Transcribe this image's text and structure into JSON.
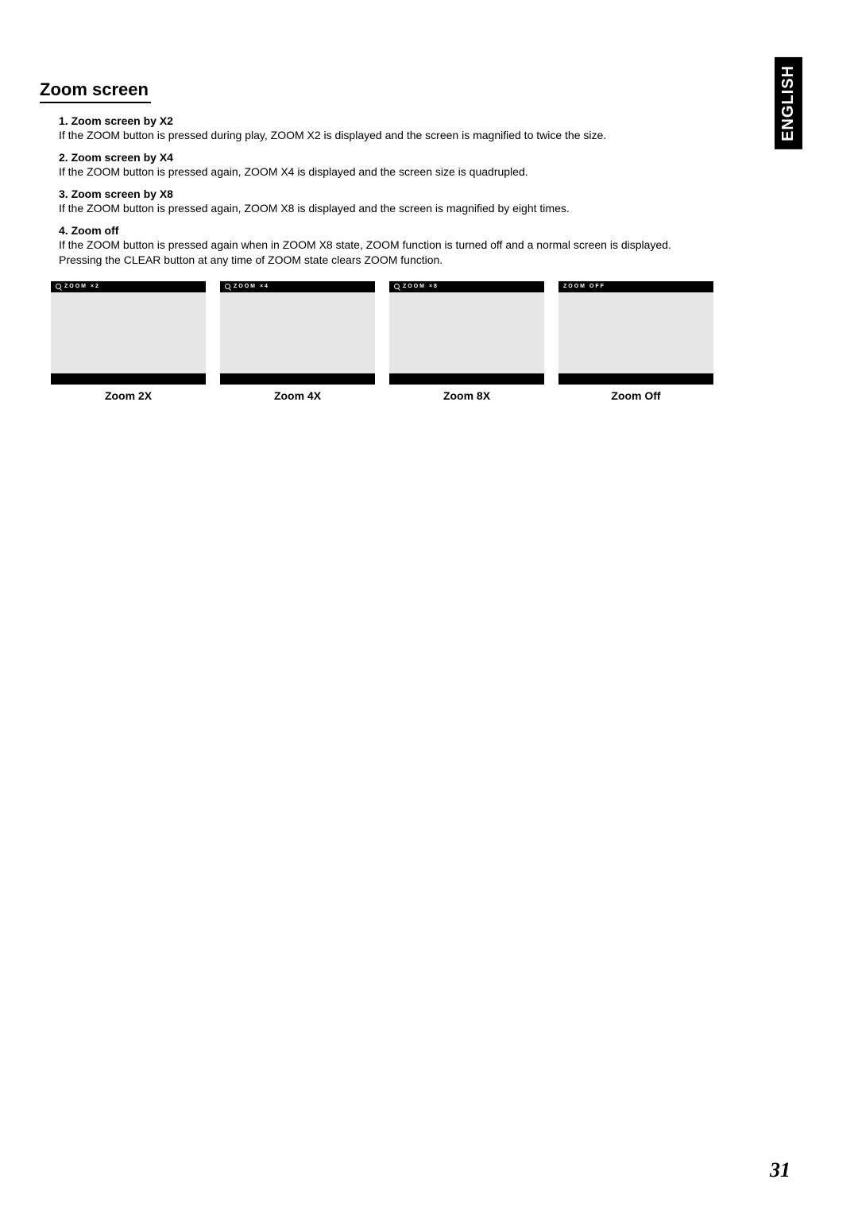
{
  "language_tab": "ENGLISH",
  "section_title": "Zoom screen",
  "items": [
    {
      "title": "1. Zoom screen by X2",
      "desc": "If the ZOOM button is pressed during play, ZOOM X2 is displayed and the screen is magnified to twice the size."
    },
    {
      "title": "2. Zoom screen by X4",
      "desc": "If the ZOOM button is pressed again, ZOOM X4 is displayed and the screen size is quadrupled."
    },
    {
      "title": "3. Zoom screen by X8",
      "desc": "If the ZOOM button is pressed again, ZOOM X8 is displayed and the screen is magnified by eight times."
    },
    {
      "title": "4. Zoom off",
      "desc": "If the ZOOM button is pressed again when in ZOOM X8 state, ZOOM function is turned off and a normal screen is displayed. Pressing the CLEAR button at any time of ZOOM state clears ZOOM function."
    }
  ],
  "screens": [
    {
      "osd": "ZOOM ×2",
      "show_icon": true,
      "caption": "Zoom 2X"
    },
    {
      "osd": "ZOOM ×4",
      "show_icon": true,
      "caption": "Zoom 4X"
    },
    {
      "osd": "ZOOM ×8",
      "show_icon": true,
      "caption": "Zoom 8X"
    },
    {
      "osd": "ZOOM OFF",
      "show_icon": false,
      "caption": "Zoom Off"
    }
  ],
  "page_number": "31",
  "colors": {
    "background": "#ffffff",
    "text": "#000000",
    "tab_bg": "#000000",
    "tab_text": "#ffffff",
    "screen_frame": "#000000",
    "screen_inner": "#e6e6e6"
  }
}
